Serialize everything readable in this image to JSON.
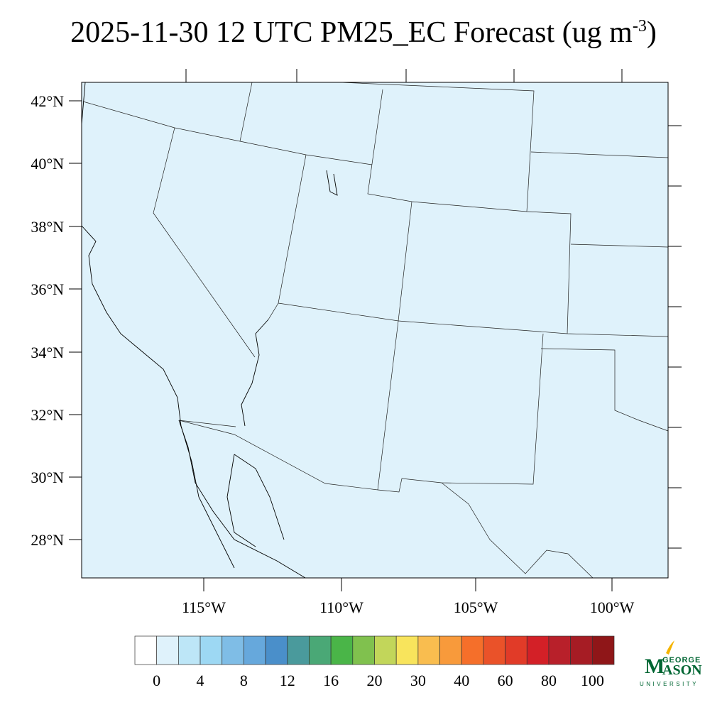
{
  "title": {
    "main": "2025-11-30 12 UTC PM25_EC Forecast (ug m",
    "sup": "-3",
    "close": ")"
  },
  "map": {
    "background_color": "#dff2fb",
    "lat_labels": [
      "42°N",
      "40°N",
      "38°N",
      "36°N",
      "34°N",
      "32°N",
      "30°N",
      "28°N"
    ],
    "lon_labels": [
      "115°W",
      "110°W",
      "105°W",
      "100°W"
    ]
  },
  "colorbar": {
    "colors": [
      "#ffffff",
      "#dff2fb",
      "#bde6f7",
      "#9dd8f3",
      "#7fbde6",
      "#66a8dc",
      "#4a8fca",
      "#4a9a9c",
      "#4aa876",
      "#4ab548",
      "#80c14e",
      "#c2d65a",
      "#f8e45c",
      "#f9bd4f",
      "#f89a3b",
      "#f56f2a",
      "#ea5229",
      "#e13b28",
      "#d32027",
      "#b8202a",
      "#a61c24",
      "#8f1618"
    ],
    "labels": [
      "0",
      "4",
      "8",
      "12",
      "16",
      "20",
      "30",
      "40",
      "60",
      "80",
      "100"
    ]
  },
  "logo": {
    "line1": "GEORGE",
    "line2": "MASON",
    "line3": "UNIVERSITY"
  }
}
